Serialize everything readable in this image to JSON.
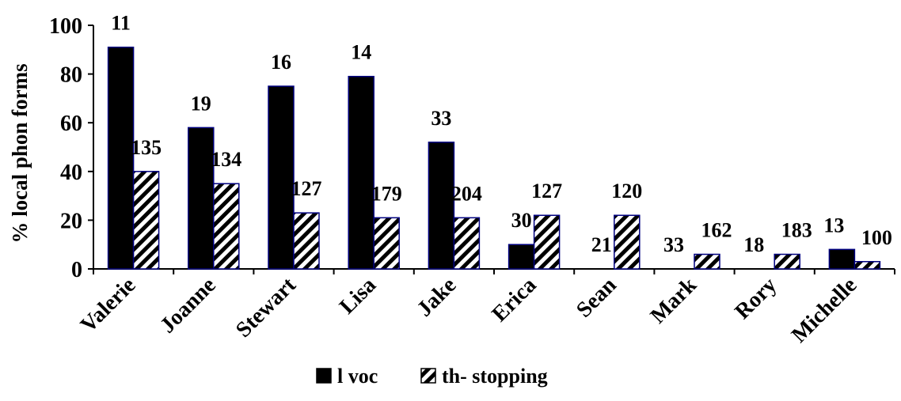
{
  "chart_data": {
    "type": "bar",
    "title": "",
    "ylabel": "% local phon forms",
    "xlabel": "",
    "ylim": [
      0,
      100
    ],
    "yticks": [
      0,
      20,
      40,
      60,
      80,
      100
    ],
    "grid": false,
    "legend_position": "bottom",
    "categories": [
      "Valerie",
      "Joanne",
      "Stewart",
      "Lisa",
      "Jake",
      "Erica",
      "Sean",
      "Mark",
      "Rory",
      "Michelle"
    ],
    "series": [
      {
        "name": "l voc",
        "values": [
          91,
          58,
          75,
          79,
          52,
          10,
          0,
          0,
          0,
          8
        ],
        "labels": [
          "11",
          "19",
          "16",
          "14",
          "33",
          "30",
          "21",
          "33",
          "18",
          "13"
        ],
        "color": "#000000",
        "pattern": "solid"
      },
      {
        "name": "th- stopping",
        "values": [
          40,
          35,
          23,
          21,
          21,
          22,
          22,
          6,
          6,
          3
        ],
        "labels": [
          "135",
          "134",
          "127",
          "179",
          "204",
          "127",
          "120",
          "162",
          "183",
          "100"
        ],
        "color": "#000000",
        "pattern": "diagonal-hatch"
      }
    ]
  }
}
